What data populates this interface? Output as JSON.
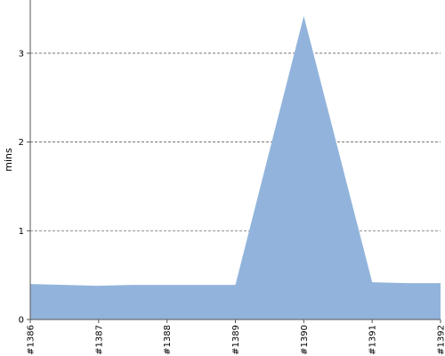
{
  "chart_data": {
    "type": "area",
    "ylabel": "mins",
    "xlabel": "",
    "title": "",
    "x": [
      "#1386",
      "#1387",
      "#1388",
      "#1389",
      "#1390",
      "#1391",
      "#1392"
    ],
    "ylim": [
      0,
      3.6
    ],
    "yticks": [
      0,
      1,
      2,
      3
    ],
    "grid": "horizontal dashed",
    "legend": "none",
    "points": [
      {
        "x": 1386,
        "y": 0.4
      },
      {
        "x": 1387,
        "y": 0.38
      },
      {
        "x": 1387.5,
        "y": 0.39
      },
      {
        "x": 1389,
        "y": 0.39
      },
      {
        "x": 1390,
        "y": 3.42
      },
      {
        "x": 1391,
        "y": 0.42
      },
      {
        "x": 1391.5,
        "y": 0.41
      },
      {
        "x": 1392,
        "y": 0.41
      }
    ],
    "colors": {
      "area_fill": "#92b4dc",
      "axis": "#555555",
      "grid": "#666666"
    }
  }
}
